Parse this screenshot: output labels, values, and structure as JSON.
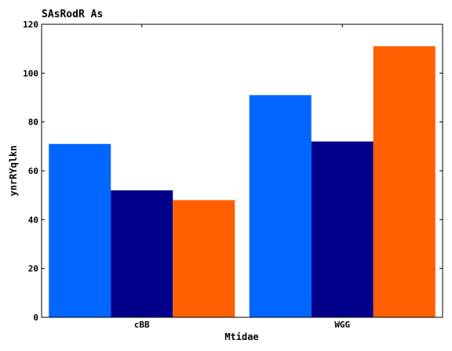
{
  "chart_data": {
    "type": "bar",
    "title": "SAsRodR As",
    "xlabel": "Mtidae",
    "ylabel": "ynrRYqlkn",
    "categories": [
      "cBB",
      "WGG"
    ],
    "series": [
      {
        "values": [
          71,
          91
        ],
        "color": "#0066ff"
      },
      {
        "values": [
          52,
          72
        ],
        "color": "#00008b"
      },
      {
        "values": [
          48,
          111
        ],
        "color": "#ff5f00"
      }
    ],
    "ylim": [
      0,
      120
    ],
    "yticks": [
      0,
      20,
      40,
      60,
      80,
      100,
      120
    ],
    "grid": false,
    "legend": "none"
  }
}
